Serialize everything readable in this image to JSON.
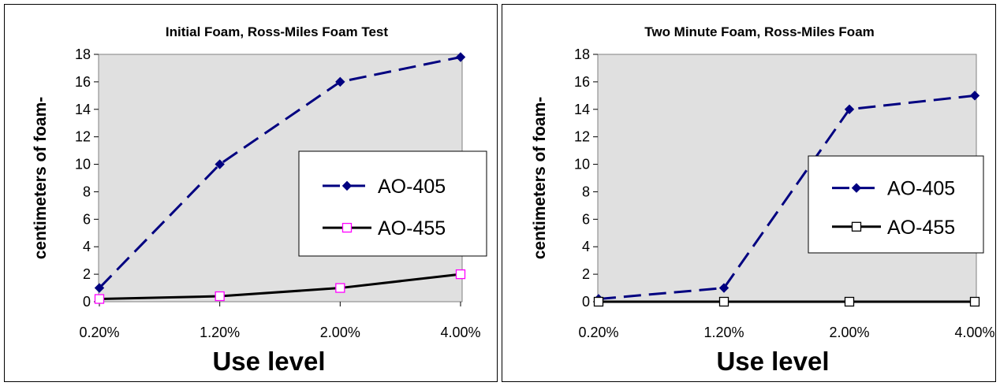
{
  "chart_data": [
    {
      "type": "line",
      "title": "Initial Foam, Ross-Miles Foam Test",
      "xlabel": "Use level",
      "ylabel": "centimeters of foam-",
      "categories": [
        "0.20%",
        "1.20%",
        "2.00%",
        "4.00%"
      ],
      "ylim": [
        0,
        18
      ],
      "yticks": [
        "0",
        "2",
        "4",
        "6",
        "8",
        "10",
        "12",
        "14",
        "16",
        "18"
      ],
      "legend_position": "right",
      "series": [
        {
          "name": "AO-405",
          "values": [
            1,
            10,
            16,
            17.8
          ],
          "color": "#000080",
          "dash": "dashed",
          "marker": "diamond",
          "marker_fill": "#000080"
        },
        {
          "name": "AO-455",
          "values": [
            0.2,
            0.4,
            1,
            2
          ],
          "color": "#000000",
          "dash": "solid",
          "marker": "square",
          "marker_fill": "#ffffff",
          "marker_stroke": "#ff00ff"
        }
      ]
    },
    {
      "type": "line",
      "title": "Two Minute Foam, Ross-Miles Foam",
      "xlabel": "Use level",
      "ylabel": "centimeters of foam-",
      "categories": [
        "0.20%",
        "1.20%",
        "2.00%",
        "4.00%"
      ],
      "ylim": [
        0,
        18
      ],
      "yticks": [
        "0",
        "2",
        "4",
        "6",
        "8",
        "10",
        "12",
        "14",
        "16",
        "18"
      ],
      "legend_position": "right",
      "series": [
        {
          "name": "AO-405",
          "values": [
            0.2,
            1,
            14,
            15
          ],
          "color": "#000080",
          "dash": "dashed",
          "marker": "diamond",
          "marker_fill": "#000080"
        },
        {
          "name": "AO-455",
          "values": [
            0,
            0,
            0,
            0
          ],
          "color": "#000000",
          "dash": "solid",
          "marker": "square",
          "marker_fill": "#ffffff",
          "marker_stroke": "#000000"
        }
      ]
    }
  ]
}
